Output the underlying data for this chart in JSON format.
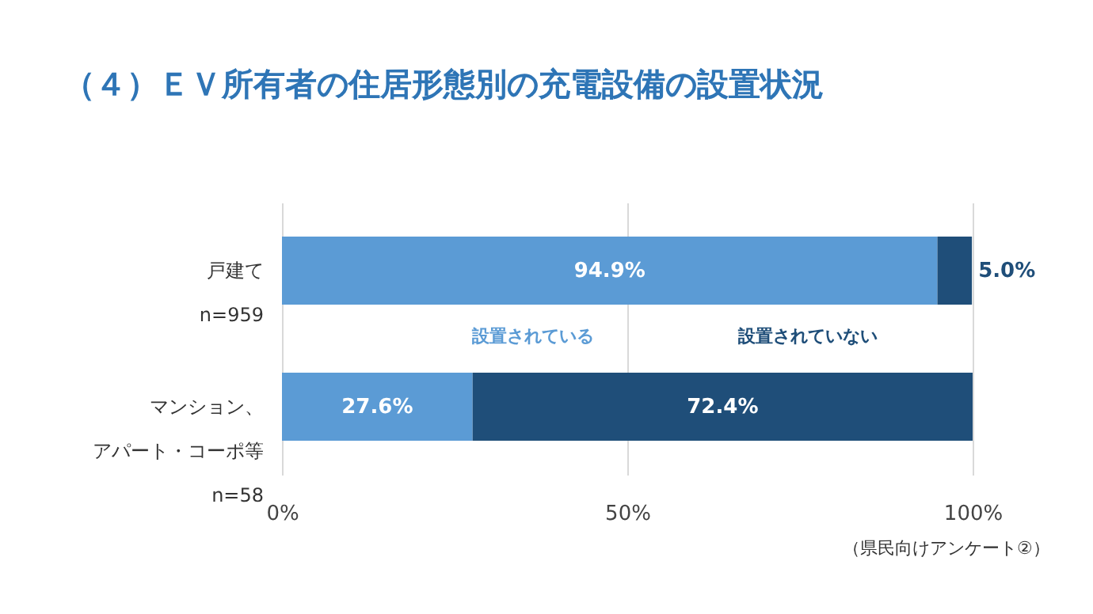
{
  "chart_data": {
    "type": "bar",
    "orientation": "horizontal",
    "stacked": true,
    "title": "（４）ＥＶ所有者の住居形態別の充電設備の設置状況",
    "categories": [
      "戸建て\nn=959",
      "マンション、アパート・コーポ等\nn=58"
    ],
    "series": [
      {
        "name": "設置されている",
        "color": "#5b9bd5",
        "values": [
          94.9,
          27.6
        ],
        "value_labels": [
          "94.9%",
          "27.6%"
        ]
      },
      {
        "name": "設置されていない",
        "color": "#1f4e79",
        "values": [
          5.0,
          72.4
        ],
        "value_labels": [
          "5.0%",
          "72.4%"
        ]
      }
    ],
    "xlim": [
      0,
      100
    ],
    "xticks": [
      {
        "value": 0,
        "label": "0%"
      },
      {
        "value": 50,
        "label": "50%"
      },
      {
        "value": 100,
        "label": "100%"
      }
    ],
    "grid": "x",
    "legend": false,
    "annotations": [
      "（県民向けアンケート②）"
    ]
  }
}
